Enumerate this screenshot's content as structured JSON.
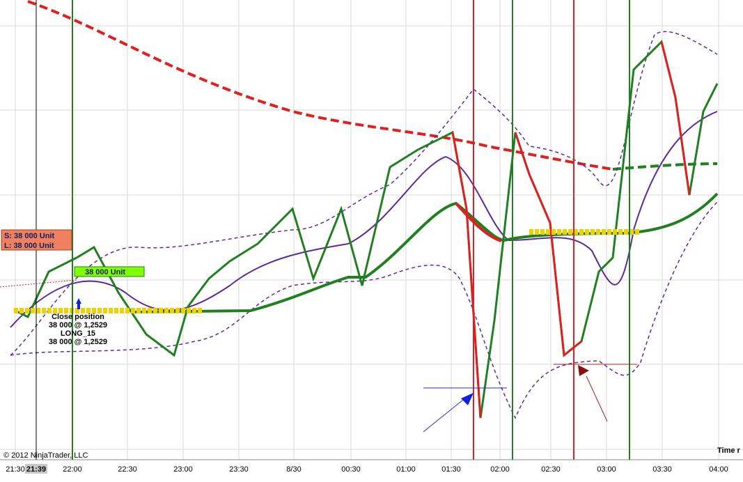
{
  "window": {
    "copyright": "© 2012 NinjaTrader, LLC",
    "axis_title": "Time r"
  },
  "time_axis": {
    "labels": [
      "21:30",
      "21:39",
      "22:00",
      "22:30",
      "23:00",
      "23:30",
      "8/30",
      "00:30",
      "01:00",
      "01:30",
      "02:00",
      "02:30",
      "03:00",
      "03:30",
      "04:00"
    ]
  },
  "orders": {
    "short": "S: 38 000 Unit",
    "long": "L: 38 000 Unit",
    "position": "38 000 Unit"
  },
  "execution": {
    "action": "Close position",
    "fill_1": "38 000 @ 1,2529",
    "signal": "LONG_15",
    "fill_2": "38 000 @ 1,2529"
  }
}
